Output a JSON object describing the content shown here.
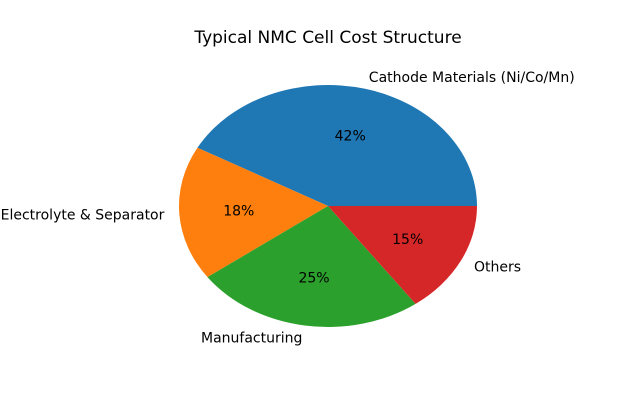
{
  "chart_data": {
    "type": "pie",
    "title": "Typical NMC Cell Cost Structure",
    "labels": [
      "Cathode Materials (Ni/Co/Mn)",
      "Electrolyte & Separator",
      "Manufacturing",
      "Others"
    ],
    "values": [
      42,
      18,
      25,
      15
    ],
    "pct_labels": [
      "42%",
      "18%",
      "25%",
      "15%"
    ],
    "colors": [
      "#1f77b4",
      "#ff7f0e",
      "#2ca02c",
      "#d62728"
    ],
    "start_angle_deg": 0,
    "direction": "counterclockwise",
    "label_distance": 1.1,
    "pct_distance": 0.6,
    "legend": "none",
    "text_color": "#000000",
    "background_color": "#ffffff"
  }
}
